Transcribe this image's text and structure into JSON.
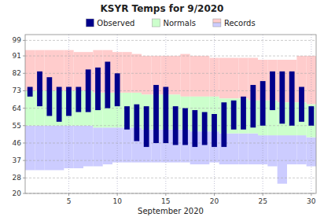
{
  "chart_data": {
    "type": "bar",
    "title": "KSYR Temps for 9/2020",
    "xlabel": "September 2020",
    "x": [
      1,
      2,
      3,
      4,
      5,
      6,
      7,
      8,
      9,
      10,
      11,
      12,
      13,
      14,
      15,
      16,
      17,
      18,
      19,
      20,
      21,
      22,
      23,
      24,
      25,
      26,
      27,
      28,
      29,
      30
    ],
    "xlim": [
      0.5,
      30.5
    ],
    "xticks": [
      5,
      10,
      15,
      20,
      25,
      30
    ],
    "ylim": [
      20,
      102
    ],
    "yticks": [
      20,
      28,
      37,
      46,
      55,
      64,
      73,
      82,
      91,
      99
    ],
    "grid": true,
    "series": [
      {
        "name": "Observed",
        "type": "bar",
        "color": "#00008b",
        "high": [
          75,
          83,
          80,
          75,
          75,
          75,
          84,
          85,
          88,
          82,
          65,
          66,
          65,
          76,
          75,
          65,
          64,
          63,
          62,
          61,
          67,
          68,
          70,
          76,
          78,
          83,
          83,
          83,
          75,
          65
        ],
        "low": [
          70,
          65,
          60,
          57,
          60,
          62,
          62,
          63,
          64,
          65,
          53,
          47,
          44,
          46,
          46,
          45,
          45,
          44,
          45,
          44,
          44,
          53,
          53,
          54,
          55,
          63,
          56,
          55,
          57,
          55
        ]
      },
      {
        "name": "Normals",
        "type": "band",
        "color": "#ccffcc",
        "high": [
          73,
          73,
          73,
          73,
          73,
          73,
          73,
          72,
          72,
          72,
          72,
          72,
          71,
          71,
          71,
          71,
          70,
          70,
          70,
          70,
          69,
          69,
          69,
          68,
          68,
          68,
          67,
          67,
          67,
          66
        ],
        "low": [
          55,
          55,
          55,
          55,
          55,
          55,
          55,
          54,
          54,
          54,
          54,
          54,
          53,
          53,
          53,
          53,
          53,
          52,
          52,
          52,
          51,
          51,
          51,
          51,
          50,
          50,
          50,
          50,
          50,
          49
        ]
      },
      {
        "name": "Records",
        "type": "band",
        "colors": [
          "#ffcccc",
          "#ccccff"
        ],
        "high": [
          94,
          94,
          94,
          94,
          94,
          93,
          93,
          94,
          94,
          93,
          93,
          92,
          91,
          91,
          91,
          91,
          92,
          91,
          91,
          90,
          90,
          90,
          90,
          90,
          89,
          89,
          89,
          89,
          91,
          91
        ],
        "low": [
          32,
          32,
          32,
          32,
          33,
          33,
          34,
          34,
          35,
          36,
          36,
          36,
          36,
          36,
          36,
          36,
          36,
          35,
          35,
          36,
          35,
          35,
          35,
          35,
          35,
          34,
          25,
          35,
          35,
          34
        ]
      }
    ]
  }
}
